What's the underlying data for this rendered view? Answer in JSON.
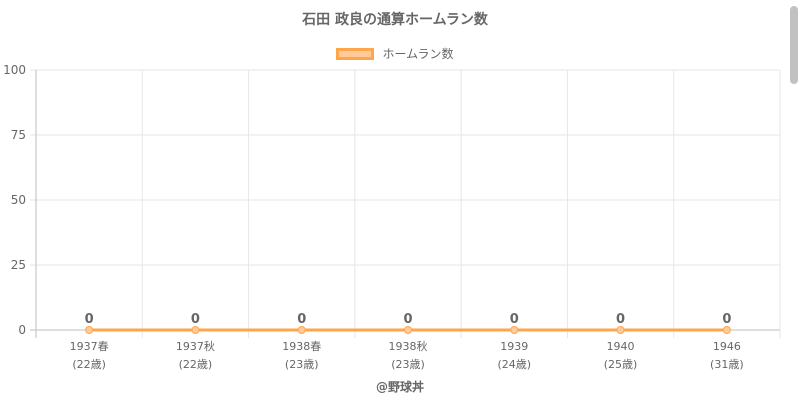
{
  "chart_data": {
    "type": "line",
    "title": "石田 政良の通算ホームラン数",
    "categories": [
      [
        "1937春",
        "(22歳)"
      ],
      [
        "1937秋",
        "(22歳)"
      ],
      [
        "1938春",
        "(23歳)"
      ],
      [
        "1938秋",
        "(23歳)"
      ],
      [
        "1939",
        "(24歳)"
      ],
      [
        "1940",
        "(25歳)"
      ],
      [
        "1946",
        "(31歳)"
      ]
    ],
    "series": [
      {
        "name": "ホームラン数",
        "values": [
          0,
          0,
          0,
          0,
          0,
          0,
          0
        ]
      }
    ],
    "ylim": [
      0,
      100
    ],
    "yticks": [
      0,
      25,
      50,
      75,
      100
    ],
    "grid": true,
    "legend_position": "top",
    "colors": {
      "line": "#ffa54b",
      "fill": "#ffcb99",
      "grid": "#e6e6e6",
      "text": "#666666"
    }
  },
  "footer": {
    "credit": "@野球丼"
  }
}
